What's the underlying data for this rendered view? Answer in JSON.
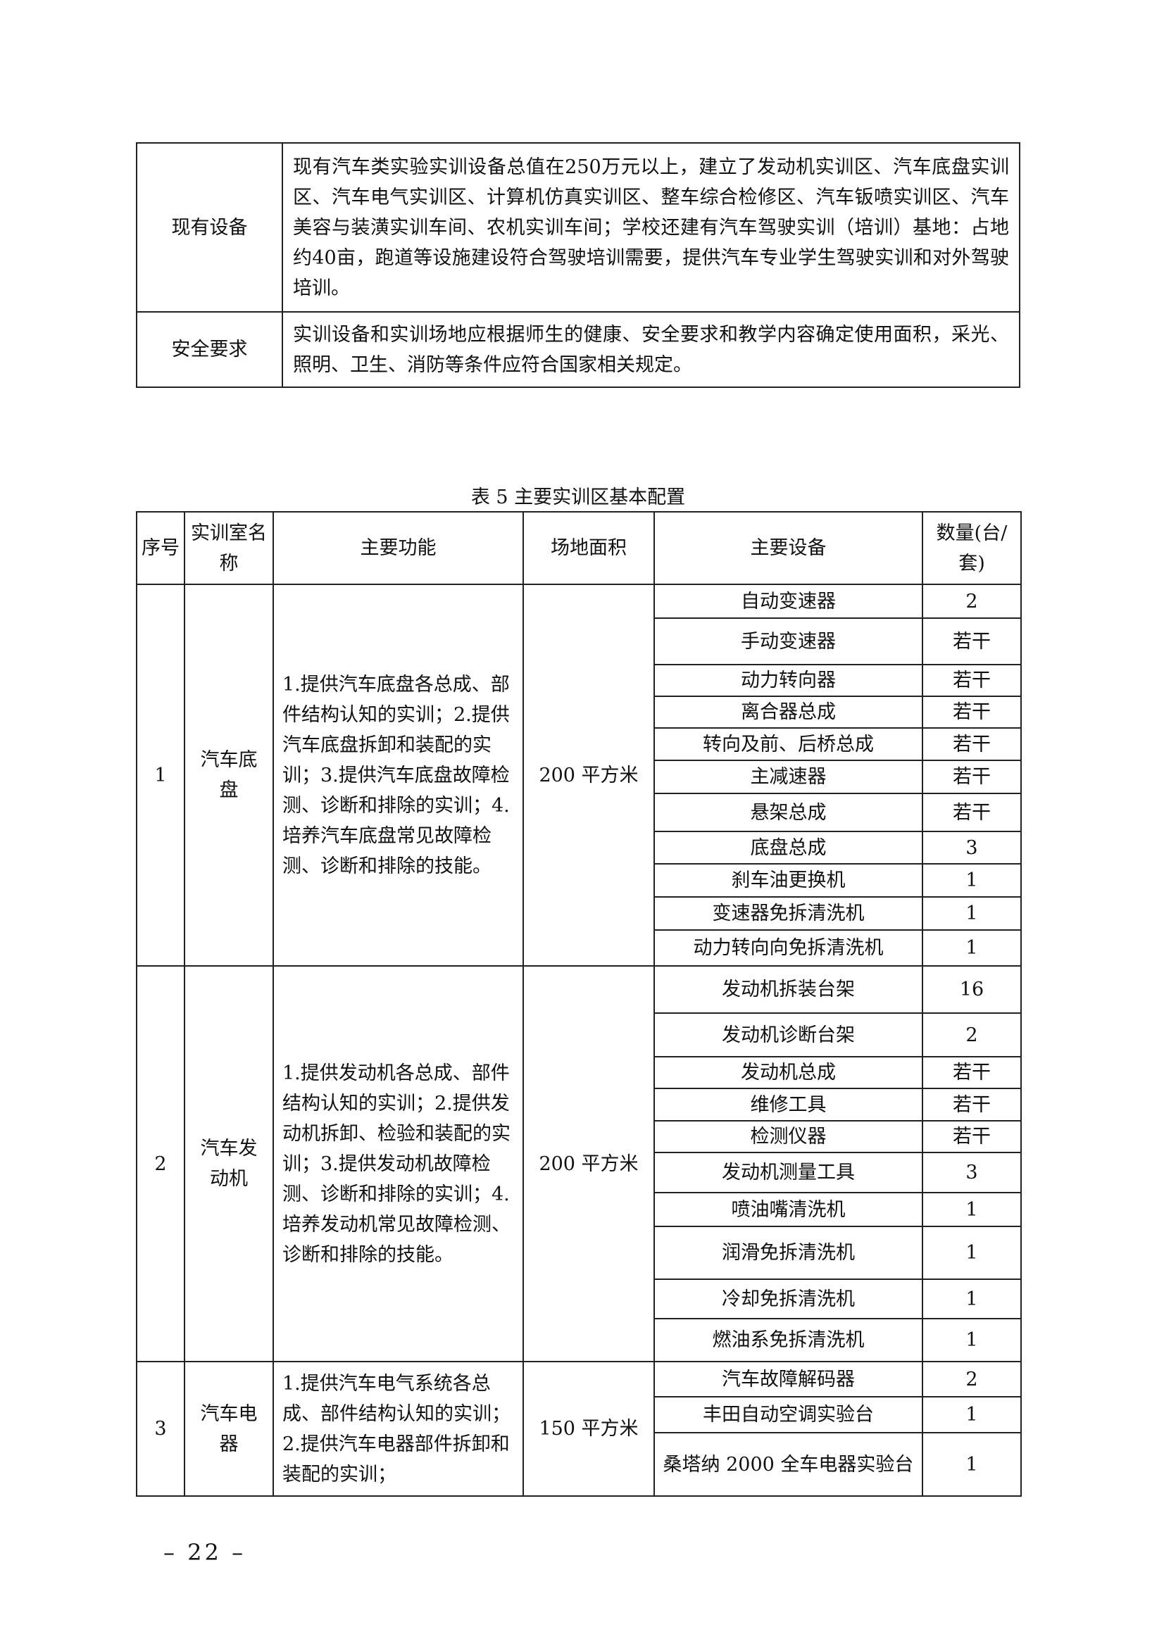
{
  "top_table": {
    "rows": [
      {
        "label": "现有设备",
        "content": "现有汽车类实验实训设备总值在250万元以上，建立了发动机实训区、汽车底盘实训区、汽车电气实训区、计算机仿真实训区、整车综合检修区、汽车钣喷实训区、汽车美容与装潢实训车间、农机实训车间；学校还建有汽车驾驶实训（培训）基地：占地约40亩，跑道等设施建设符合驾驶培训需要，提供汽车专业学生驾驶实训和对外驾驶培训。"
      },
      {
        "label": "安全要求",
        "content": "实训设备和实训场地应根据师生的健康、安全要求和教学内容确定使用面积，采光、照明、卫生、消防等条件应符合国家相关规定。"
      }
    ]
  },
  "caption": "表 5  主要实训区基本配置",
  "main_table": {
    "headers": {
      "no": "序号",
      "room": "实训室名称",
      "function": "主要功能",
      "area": "场地面积",
      "equipment": "主要设备",
      "qty": "数量(台/套)"
    },
    "groups": [
      {
        "no": "1",
        "room": "汽车底盘",
        "function": "1.提供汽车底盘各总成、部件结构认知的实训；2.提供汽车底盘拆卸和装配的实训；3.提供汽车底盘故障检测、诊断和排除的实训；4.培养汽车底盘常见故障检测、诊断和排除的技能。",
        "area": "200 平方米",
        "items": [
          {
            "name": "自动变速器",
            "qty": "2"
          },
          {
            "name": "手动变速器",
            "qty": "若干"
          },
          {
            "name": "动力转向器",
            "qty": "若干"
          },
          {
            "name": "离合器总成",
            "qty": "若干"
          },
          {
            "name": "转向及前、后桥总成",
            "qty": "若干"
          },
          {
            "name": "主减速器",
            "qty": "若干"
          },
          {
            "name": "悬架总成",
            "qty": "若干"
          },
          {
            "name": "底盘总成",
            "qty": "3"
          },
          {
            "name": "刹车油更换机",
            "qty": "1"
          },
          {
            "name": "变速器免拆清洗机",
            "qty": "1"
          },
          {
            "name": "动力转向向免拆清洗机",
            "qty": "1"
          }
        ]
      },
      {
        "no": "2",
        "room": "汽车发动机",
        "function": "1.提供发动机各总成、部件结构认知的实训；2.提供发动机拆卸、检验和装配的实训；3.提供发动机故障检测、诊断和排除的实训；4.培养发动机常见故障检测、诊断和排除的技能。",
        "area": "200 平方米",
        "items": [
          {
            "name": "发动机拆装台架",
            "qty": "16"
          },
          {
            "name": "发动机诊断台架",
            "qty": "2"
          },
          {
            "name": "发动机总成",
            "qty": "若干"
          },
          {
            "name": "维修工具",
            "qty": "若干"
          },
          {
            "name": "检测仪器",
            "qty": "若干"
          },
          {
            "name": "发动机测量工具",
            "qty": "3"
          },
          {
            "name": "喷油嘴清洗机",
            "qty": "1"
          },
          {
            "name": "润滑免拆清洗机",
            "qty": "1"
          },
          {
            "name": "冷却免拆清洗机",
            "qty": "1"
          },
          {
            "name": "燃油系免拆清洗机",
            "qty": "1"
          }
        ]
      },
      {
        "no": "3",
        "room": "汽车电器",
        "function": "1.提供汽车电气系统各总成、部件结构认知的实训；2.提供汽车电器部件拆卸和装配的实训；",
        "area": "150 平方米",
        "items": [
          {
            "name": "汽车故障解码器",
            "qty": "2"
          },
          {
            "name": "丰田自动空调实验台",
            "qty": "1"
          },
          {
            "name": "桑塔纳 2000 全车电器实验台",
            "qty": "1"
          }
        ]
      }
    ]
  },
  "page_number": "– 22 –"
}
